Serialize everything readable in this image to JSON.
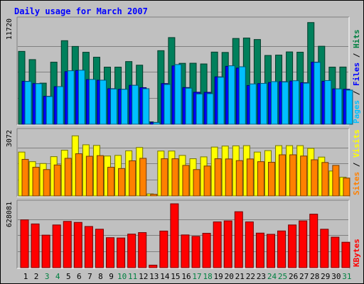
{
  "chart_data": {
    "type": "bar",
    "title": "Daily usage for March 2007",
    "days": [
      "1",
      "2",
      "3",
      "4",
      "5",
      "6",
      "7",
      "8",
      "9",
      "10",
      "11",
      "12",
      "13",
      "14",
      "15",
      "16",
      "17",
      "18",
      "19",
      "20",
      "21",
      "22",
      "23",
      "24",
      "25",
      "26",
      "27",
      "28",
      "29",
      "30",
      "31"
    ],
    "weekend_days": [
      "3",
      "4",
      "10",
      "11",
      "17",
      "18",
      "24",
      "25",
      "31"
    ],
    "panels": [
      {
        "max_label": "11720",
        "ymax": 11720,
        "legend": [
          {
            "text": "Pages",
            "color": "#00c0ff"
          },
          {
            "text": " / ",
            "color": "#000000"
          },
          {
            "text": "Files",
            "color": "#0000ff"
          },
          {
            "text": " / ",
            "color": "#000000"
          },
          {
            "text": "Hits",
            "color": "#008040"
          }
        ],
        "series": [
          {
            "name": "Hits",
            "color": "#00805c",
            "values": [
              8240,
              7310,
              4650,
              7020,
              9450,
              8800,
              8140,
              7580,
              6460,
              6460,
              7090,
              6680,
              270,
              8320,
              9800,
              6890,
              6900,
              6820,
              8160,
              8120,
              9700,
              9750,
              9580,
              7780,
              7820,
              8180,
              8150,
              11500,
              8820,
              6460,
              6470
            ]
          },
          {
            "name": "Files",
            "color": "#0000ff",
            "values": [
              4850,
              4600,
              3160,
              4250,
              5950,
              6080,
              5050,
              4980,
              4020,
              3950,
              4400,
              4140,
              210,
              4600,
              6600,
              4150,
              3620,
              3610,
              5360,
              6550,
              6350,
              4380,
              4600,
              4720,
              4810,
              4880,
              4700,
              7020,
              4850,
              4000,
              3960
            ]
          },
          {
            "name": "Pages",
            "color": "#00bfff",
            "values": [
              4840,
              4590,
              3140,
              4260,
              6050,
              6110,
              5070,
              4980,
              3990,
              3950,
              4400,
              4020,
              200,
              4500,
              6750,
              4080,
              3430,
              3460,
              5320,
              6610,
              6500,
              4560,
              4620,
              4820,
              4780,
              4920,
              4650,
              7000,
              4940,
              4000,
              3860
            ]
          }
        ]
      },
      {
        "max_label": "3072",
        "ymax": 3072,
        "legend": [
          {
            "text": "Sites",
            "color": "#ff8000"
          },
          {
            "text": " / ",
            "color": "#000000"
          },
          {
            "text": "Visits",
            "color": "#ffff00"
          }
        ],
        "series": [
          {
            "name": "Visits",
            "color": "#ffff00",
            "values": [
              2110,
              1650,
              1560,
              1890,
              2200,
              2890,
              2460,
              2430,
              1920,
              1950,
              2170,
              2330,
              100,
              2160,
              2160,
              1950,
              1790,
              1880,
              2350,
              2400,
              2410,
              2420,
              2110,
              2180,
              2420,
              2420,
              2420,
              2290,
              1870,
              1200,
              900
            ]
          },
          {
            "name": "Sites",
            "color": "#ff8000",
            "values": [
              1760,
              1380,
              1270,
              1490,
              1810,
              2030,
              1910,
              1940,
              1380,
              1320,
              1690,
              1810,
              80,
              1790,
              1790,
              1470,
              1270,
              1440,
              1790,
              1780,
              1700,
              1780,
              1650,
              1620,
              1980,
              1980,
              1920,
              1740,
              1610,
              1470,
              860
            ]
          }
        ]
      },
      {
        "max_label": "628081",
        "ymax": 628081,
        "legend": [
          {
            "text": "KBytes",
            "color": "#ff0000"
          }
        ],
        "series": [
          {
            "name": "KBytes",
            "color": "#ff0000",
            "values": [
              470000,
              430000,
              320000,
              420000,
              455000,
              445000,
              405000,
              378000,
              295000,
              292000,
              330000,
              345000,
              25000,
              360000,
              628000,
              322000,
              308000,
              338000,
              450000,
              460000,
              550000,
              450000,
              340000,
              328000,
              361000,
              420000,
              460000,
              526000,
              378000,
              300000,
              250000
            ]
          }
        ]
      }
    ]
  }
}
